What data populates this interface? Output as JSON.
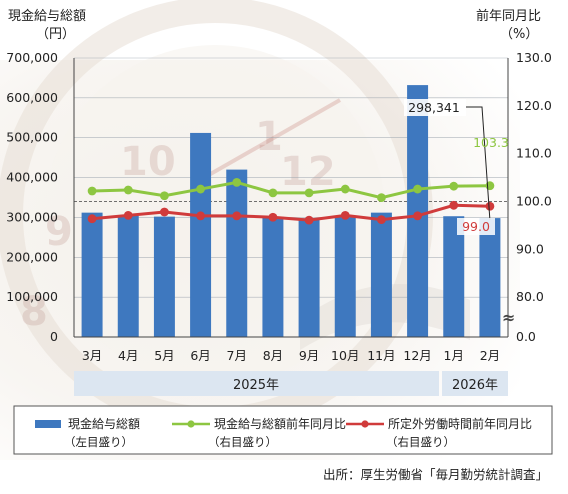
{
  "chart_data": {
    "type": "bar",
    "left_axis_title": [
      "現金給与総額",
      "（円）"
    ],
    "right_axis_title": [
      "前年同月比",
      "（%）"
    ],
    "categories": [
      "3月",
      "4月",
      "5月",
      "6月",
      "7月",
      "8月",
      "9月",
      "10月",
      "11月",
      "12月",
      "1月",
      "2月"
    ],
    "year_groups": [
      {
        "label": "2025年",
        "from": "3月",
        "to": "12月"
      },
      {
        "label": "2026年",
        "from": "1月",
        "to": "2月"
      }
    ],
    "left_axis": {
      "ylim": [
        0,
        700000
      ],
      "ticks": [
        0,
        100000,
        200000,
        300000,
        400000,
        500000,
        600000,
        700000
      ],
      "tick_labels": [
        "0",
        "100,000",
        "200,000",
        "300,000",
        "400,000",
        "500,000",
        "600,000",
        "700,000"
      ]
    },
    "right_axis": {
      "ylim": [
        80,
        130
      ],
      "ticks": [
        80,
        90,
        100,
        110,
        120,
        130
      ],
      "tick_labels": [
        "80.0",
        "90.0",
        "100.0",
        "110.0",
        "120.0",
        "130.0"
      ],
      "bottom_label": "0.0",
      "break": true
    },
    "reference_line": 100,
    "series": [
      {
        "name": "現金給与総額",
        "axis": "left",
        "type": "bar",
        "color": "#3e78bf",
        "values": [
          312000,
          304000,
          302000,
          512000,
          420000,
          302000,
          298000,
          300000,
          312000,
          632000,
          303000,
          298341
        ]
      },
      {
        "name": "現金給与総額前年同月比",
        "axis": "right",
        "type": "line",
        "color": "#8dc641",
        "values": [
          102.2,
          102.4,
          101.2,
          102.6,
          104.0,
          101.8,
          101.8,
          102.6,
          100.8,
          102.6,
          103.2,
          103.3
        ]
      },
      {
        "name": "所定外労働時間前年同月比",
        "axis": "right",
        "type": "line",
        "color": "#d03b3b",
        "values": [
          96.4,
          97.1,
          97.8,
          97.0,
          97.0,
          96.7,
          96.1,
          97.1,
          96.2,
          97.0,
          99.2,
          99.0
        ]
      }
    ],
    "annotations": [
      {
        "text": "298,341",
        "series": "現金給与総額",
        "category": "2月"
      },
      {
        "text": "103.3",
        "series": "現金給与総額前年同月比",
        "category": "2月",
        "color": "#8dc641"
      },
      {
        "text": "99.0",
        "series": "所定外労働時間前年同月比",
        "category": "2月",
        "color": "#d03b3b"
      }
    ],
    "legend": {
      "placement": "bottom",
      "entries": [
        {
          "label": "現金給与総額",
          "sub": "（左目盛り）"
        },
        {
          "label": "現金給与総額前年同月比",
          "sub": "（右目盛り）"
        },
        {
          "label": "所定外労働時間前年同月比",
          "sub": "（右目盛り）"
        }
      ]
    },
    "source": "出所：厚生労働省「毎月勤労統計調査」",
    "break_symbol": "≈"
  }
}
